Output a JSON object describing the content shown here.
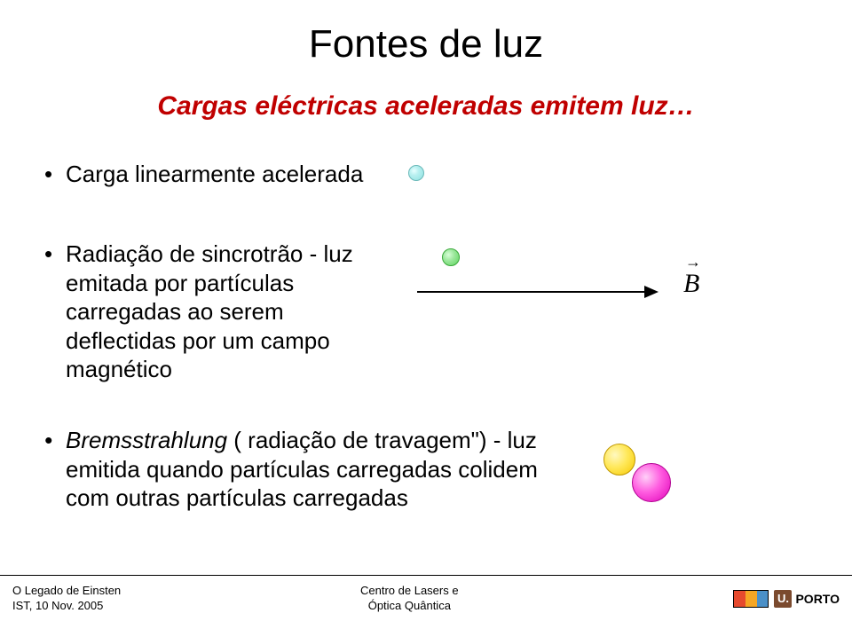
{
  "title": "Fontes de luz",
  "subtitle": "Cargas eléctricas aceleradas emitem luz…",
  "subtitle_color": "#c00000",
  "bullets": {
    "b1": "Carga linearmente acelerada",
    "b2": "Radiação de sincrotrão - luz emitada por partículas carregadas ao serem deflectidas por um campo magnético",
    "b3_italic": "Bremsstrahlung",
    "b3_rest": " ( radiação de travagem\") - luz emitida quando partículas carregadas colidem com outras partículas carregadas"
  },
  "b_vector_label": "B",
  "diagram": {
    "dot1_color": "#8de0e0",
    "dot2_color": "#5cd45c",
    "dot3_color": "#f6c800",
    "dot4_color": "#e000b8",
    "arrow_color": "#000000"
  },
  "footer": {
    "left_line1": "O Legado de Einsten",
    "left_line2": "IST, 10 Nov. 2005",
    "center_line1": "Centro de Lasers e",
    "center_line2": "Óptica Quântica",
    "porto_label": "PORTO",
    "porto_u": "U."
  }
}
